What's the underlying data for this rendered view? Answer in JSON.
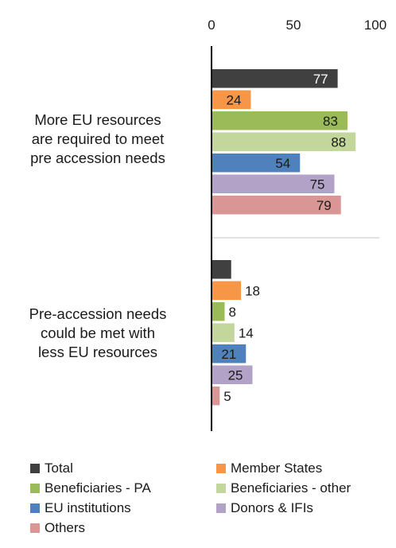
{
  "chart_data": {
    "type": "bar",
    "orientation": "horizontal",
    "xlim": [
      0,
      100
    ],
    "x_ticks": [
      "0",
      "50",
      "100"
    ],
    "categories": [
      "More EU resources are required to meet pre accession needs",
      "Pre-accession needs could be met with less EU resources"
    ],
    "category_lines": [
      [
        "More EU resources",
        "are required to meet",
        "pre accession needs"
      ],
      [
        "Pre-accession needs",
        "could be met with",
        "less EU resources"
      ]
    ],
    "series": [
      {
        "name": "Total",
        "color": "#404040",
        "values": [
          77,
          12
        ]
      },
      {
        "name": "Member States",
        "color": "#f79646",
        "values": [
          24,
          18
        ]
      },
      {
        "name": "Beneficiaries - PA",
        "color": "#9bbb59",
        "values": [
          83,
          8
        ]
      },
      {
        "name": "Beneficiaries - other",
        "color": "#c3d69b",
        "values": [
          88,
          14
        ]
      },
      {
        "name": "EU institutions",
        "color": "#4f81bd",
        "values": [
          54,
          21
        ]
      },
      {
        "name": "Donors & IFIs",
        "color": "#b3a2c7",
        "values": [
          75,
          25
        ]
      },
      {
        "name": "Others",
        "color": "#d99694",
        "values": [
          79,
          5
        ]
      }
    ],
    "legend_position": "bottom",
    "grid": false
  }
}
